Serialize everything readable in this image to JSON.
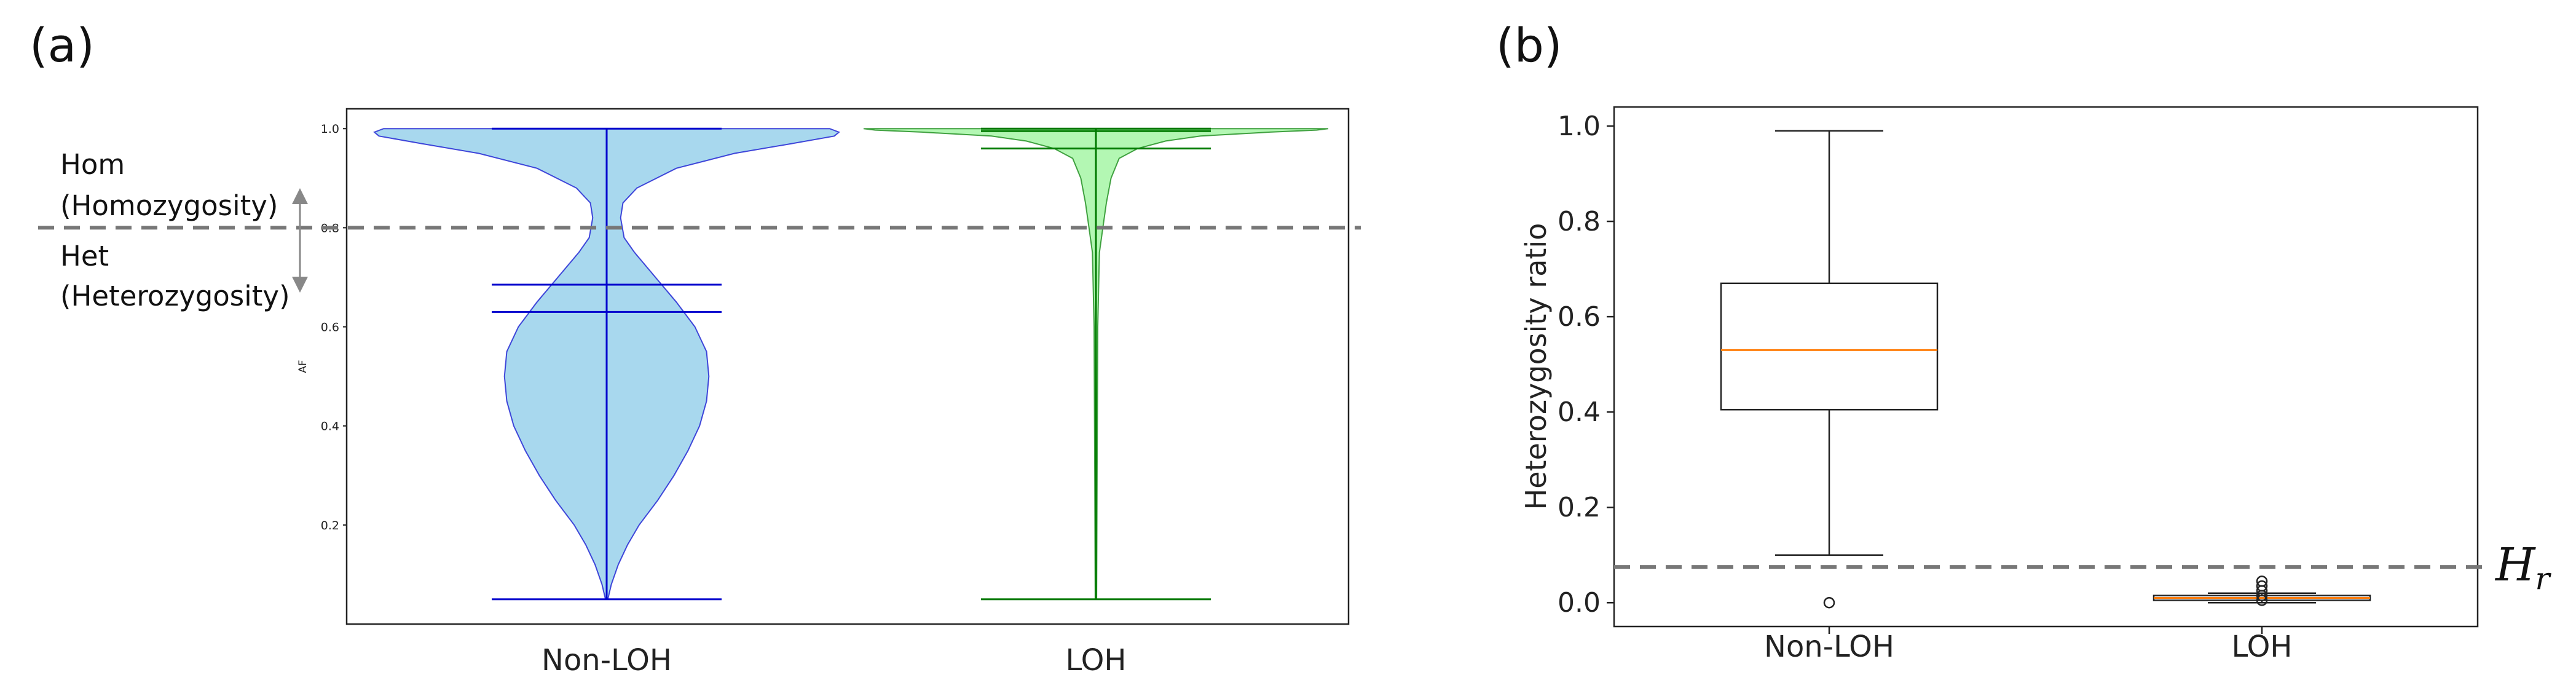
{
  "chart_data": [
    {
      "panel": "(a)",
      "type": "violin",
      "ylabel": "AF",
      "categories": [
        "Non-LOH",
        "LOH"
      ],
      "yticks": [
        "0.2",
        "0.4",
        "0.6",
        "0.8",
        "1.0"
      ],
      "ylim": [
        0.0,
        1.04
      ],
      "series": [
        {
          "name": "Non-LOH",
          "color": "#0000cd",
          "fill": "#a8d8ee",
          "min": 0.05,
          "max": 1.0,
          "mean": 0.63,
          "median": 0.685,
          "profile": [
            [
              0.05,
              0.005
            ],
            [
              0.08,
              0.02
            ],
            [
              0.12,
              0.05
            ],
            [
              0.16,
              0.09
            ],
            [
              0.2,
              0.14
            ],
            [
              0.25,
              0.22
            ],
            [
              0.3,
              0.29
            ],
            [
              0.35,
              0.35
            ],
            [
              0.4,
              0.4
            ],
            [
              0.45,
              0.43
            ],
            [
              0.5,
              0.44
            ],
            [
              0.55,
              0.43
            ],
            [
              0.6,
              0.38
            ],
            [
              0.65,
              0.3
            ],
            [
              0.7,
              0.21
            ],
            [
              0.75,
              0.12
            ],
            [
              0.78,
              0.075
            ],
            [
              0.82,
              0.06
            ],
            [
              0.85,
              0.07
            ],
            [
              0.88,
              0.13
            ],
            [
              0.92,
              0.3
            ],
            [
              0.95,
              0.55
            ],
            [
              0.97,
              0.8
            ],
            [
              0.985,
              0.98
            ],
            [
              0.993,
              1.0
            ],
            [
              1.0,
              0.96
            ]
          ]
        },
        {
          "name": "LOH",
          "color": "#007a00",
          "fill": "#b3f7b3",
          "min": 0.05,
          "max": 1.0,
          "mean": 0.96,
          "median": 0.995,
          "profile": [
            [
              0.05,
              0.003
            ],
            [
              0.3,
              0.005
            ],
            [
              0.6,
              0.008
            ],
            [
              0.75,
              0.015
            ],
            [
              0.8,
              0.03
            ],
            [
              0.85,
              0.045
            ],
            [
              0.9,
              0.065
            ],
            [
              0.94,
              0.1
            ],
            [
              0.96,
              0.18
            ],
            [
              0.975,
              0.3
            ],
            [
              0.985,
              0.45
            ],
            [
              0.993,
              0.75
            ],
            [
              0.997,
              0.95
            ],
            [
              1.0,
              1.0
            ]
          ]
        }
      ],
      "threshold": {
        "value": 0.8
      },
      "annotations": [
        {
          "text": "Hom",
          "sub": "(Homozygosity)"
        },
        {
          "text": "Het",
          "sub": "(Heterozygosity)"
        }
      ]
    },
    {
      "panel": "(b)",
      "type": "box",
      "ylabel": "Heterozygosity ratio",
      "categories": [
        "Non-LOH",
        "LOH"
      ],
      "yticks": [
        "0.0",
        "0.2",
        "0.4",
        "0.6",
        "0.8",
        "1.0"
      ],
      "ylim": [
        -0.05,
        1.04
      ],
      "series": [
        {
          "name": "Non-LOH",
          "whisker_low": 0.1,
          "q1": 0.405,
          "median": 0.53,
          "q3": 0.67,
          "whisker_high": 0.99,
          "outliers": [
            0.0
          ]
        },
        {
          "name": "LOH",
          "whisker_low": 0.0,
          "q1": 0.005,
          "median": 0.01,
          "q3": 0.015,
          "whisker_high": 0.02,
          "outliers": [
            0.045,
            0.035,
            0.025,
            0.015,
            0.005
          ]
        }
      ],
      "threshold": {
        "value": 0.075,
        "label": "H",
        "sub": "r"
      }
    }
  ]
}
